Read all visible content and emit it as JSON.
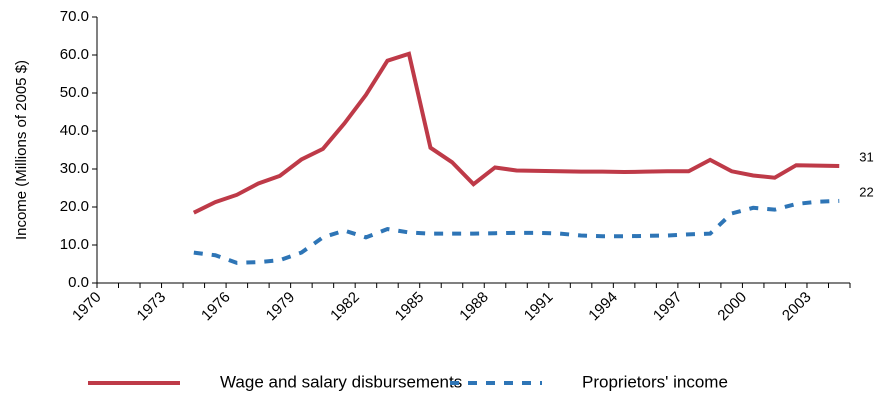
{
  "chart_data": {
    "type": "line",
    "y_label": "Income (Millions of 2005 $)",
    "categories": [
      "1970",
      null,
      null,
      "1973",
      null,
      null,
      "1976",
      null,
      null,
      "1979",
      null,
      null,
      "1982",
      null,
      null,
      "1985",
      null,
      null,
      "1988",
      null,
      null,
      "1991",
      null,
      null,
      "1994",
      null,
      null,
      "1997",
      null,
      null,
      "2000",
      null,
      null,
      "2003",
      null
    ],
    "series": [
      {
        "name": "Wage and salary disbursements",
        "color": "#be3a48",
        "dash": false,
        "values": [
          null,
          null,
          null,
          null,
          18.5,
          21.3,
          23.2,
          26.2,
          28.2,
          32.5,
          35.3,
          42,
          49.5,
          58.5,
          60.3,
          35.6,
          31.8,
          26,
          30.4,
          29.6,
          29.5,
          29.4,
          29.3,
          29.3,
          29.2,
          29.3,
          29.4,
          29.4,
          32.4,
          29.4,
          28.3,
          27.7,
          31,
          30.9,
          30.8
        ],
        "value_labels": [
          null,
          null,
          null,
          null,
          null,
          null,
          null,
          null,
          null,
          null,
          null,
          null,
          null,
          null,
          null,
          null,
          null,
          null,
          null,
          null,
          null,
          null,
          null,
          null,
          null,
          null,
          null,
          null,
          null,
          null,
          null,
          null,
          null,
          null,
          "31"
        ]
      },
      {
        "name": "Proprietors' income",
        "color": "#2e75b6",
        "dash": true,
        "values": [
          null,
          null,
          null,
          null,
          8,
          7.3,
          5.3,
          5.5,
          6,
          8,
          12,
          13.8,
          12,
          14.2,
          13.3,
          13,
          13,
          13,
          13.1,
          13.2,
          13.2,
          13,
          12.5,
          12.3,
          12.3,
          12.4,
          12.5,
          12.8,
          13,
          18.3,
          19.8,
          19.3,
          20.8,
          21.4,
          21.6
        ],
        "value_labels": [
          null,
          null,
          null,
          null,
          null,
          null,
          null,
          null,
          null,
          null,
          null,
          null,
          null,
          null,
          null,
          null,
          null,
          null,
          null,
          null,
          null,
          null,
          null,
          null,
          null,
          null,
          null,
          null,
          null,
          null,
          null,
          null,
          null,
          null,
          "22"
        ]
      }
    ],
    "ylim": [
      0,
      70
    ],
    "yticks": [
      {
        "value": 0,
        "label": "0.0"
      },
      {
        "value": 10,
        "label": "10.0"
      },
      {
        "value": 20,
        "label": "20.0"
      },
      {
        "value": 30,
        "label": "30.0"
      },
      {
        "value": 40,
        "label": "40.0"
      },
      {
        "value": 50,
        "label": "50.0"
      },
      {
        "value": 60,
        "label": "60.0"
      },
      {
        "value": 70,
        "label": "70.0"
      }
    ],
    "grid": false,
    "legend": "bottom"
  }
}
